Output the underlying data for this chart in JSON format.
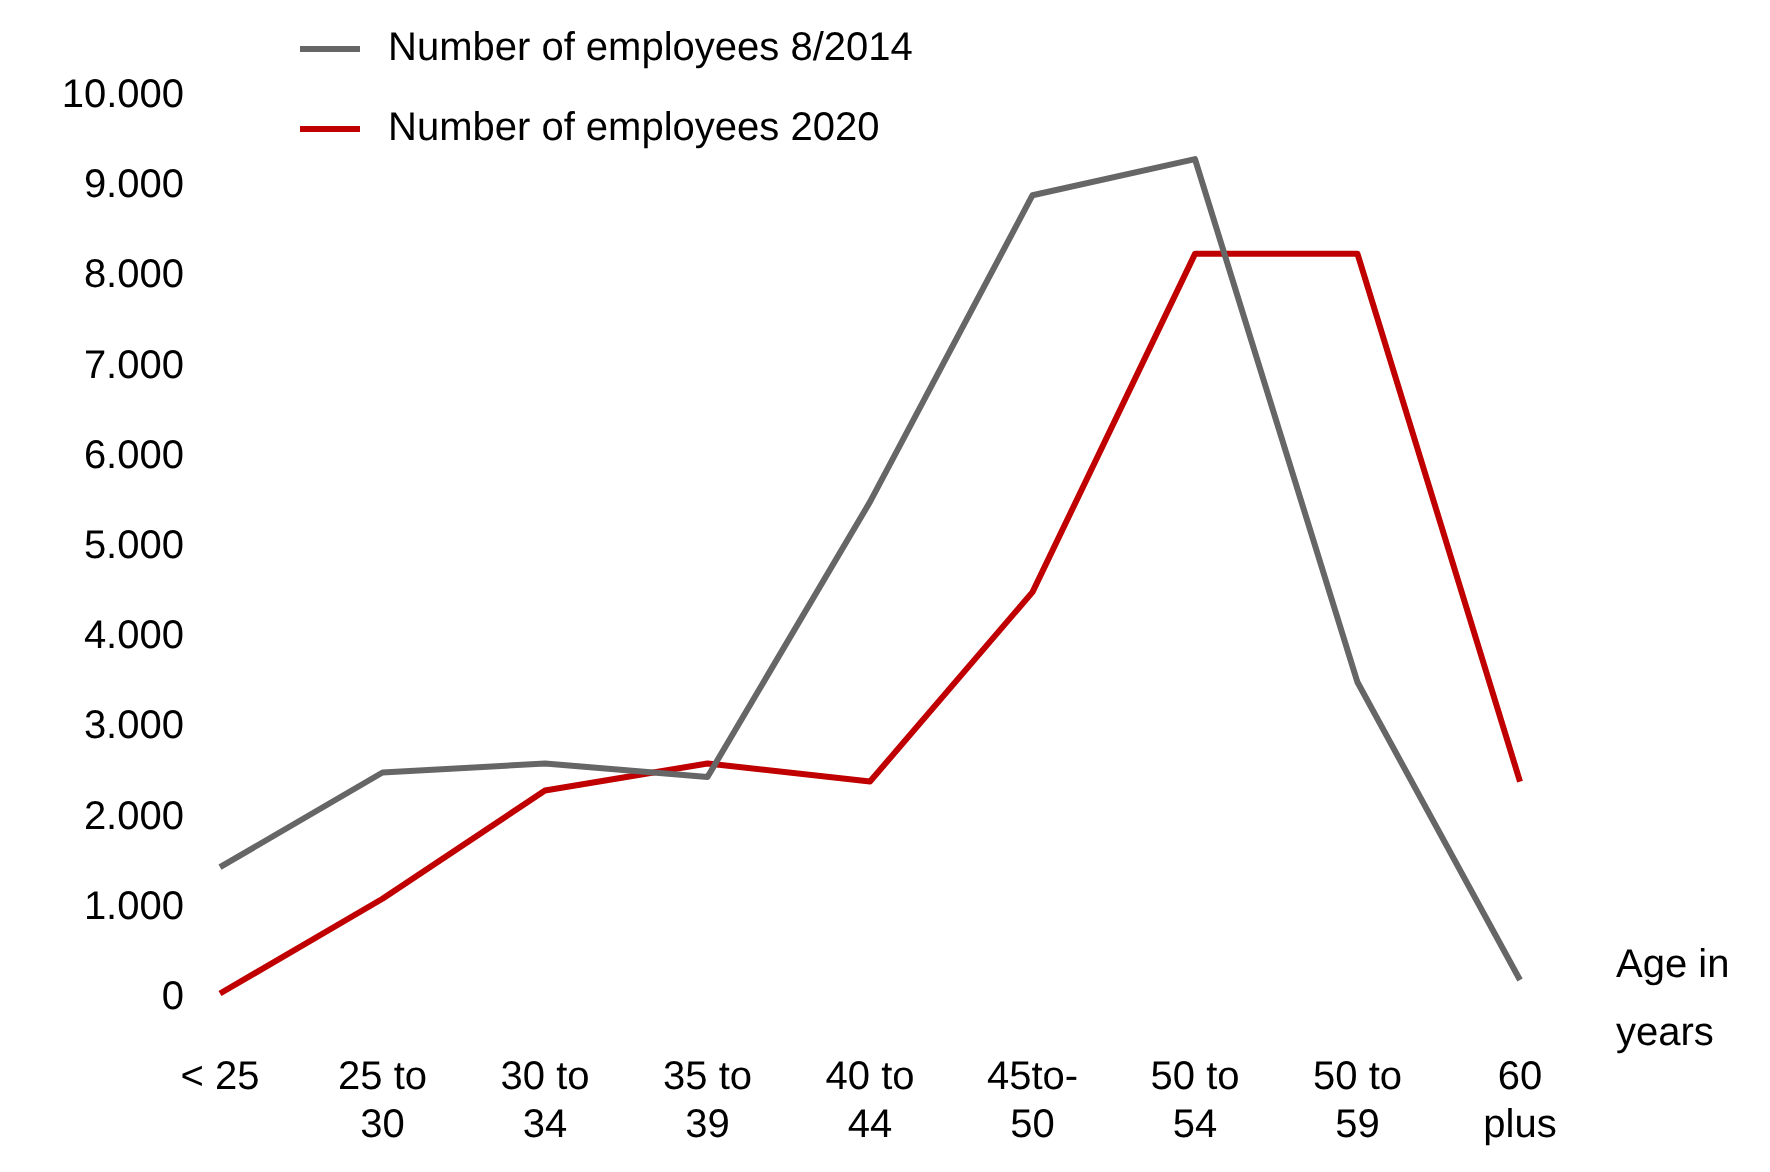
{
  "chart_data": {
    "type": "line",
    "categories": [
      "< 25",
      "25 to 30",
      "30 to 34",
      "35 to 39",
      "40 to 44",
      "45to-50",
      "50 to 54",
      "50 to 59",
      "60 plus"
    ],
    "series": [
      {
        "name": "Number of employees 8/2014",
        "color": "#666666",
        "values": [
          1450,
          2500,
          2600,
          2450,
          5500,
          8900,
          9300,
          3500,
          200
        ]
      },
      {
        "name": "Number of employees 2020",
        "color": "#c00000",
        "values": [
          50,
          1100,
          2300,
          2600,
          2400,
          4500,
          8250,
          8250,
          2400
        ]
      }
    ],
    "xlabel": "Age in years",
    "ylim": [
      0,
      10000
    ],
    "yticks": [
      {
        "value": 0,
        "label": "0"
      },
      {
        "value": 1000,
        "label": "1.000"
      },
      {
        "value": 2000,
        "label": "2.000"
      },
      {
        "value": 3000,
        "label": "3.000"
      },
      {
        "value": 4000,
        "label": "4.000"
      },
      {
        "value": 5000,
        "label": "5.000"
      },
      {
        "value": 6000,
        "label": "6.000"
      },
      {
        "value": 7000,
        "label": "7.000"
      },
      {
        "value": 8000,
        "label": "8.000"
      },
      {
        "value": 9000,
        "label": "9.000"
      },
      {
        "value": 10000,
        "label": "10.000"
      }
    ],
    "grid": false,
    "legend": "top left",
    "marker": "none",
    "line_style": "solid"
  }
}
